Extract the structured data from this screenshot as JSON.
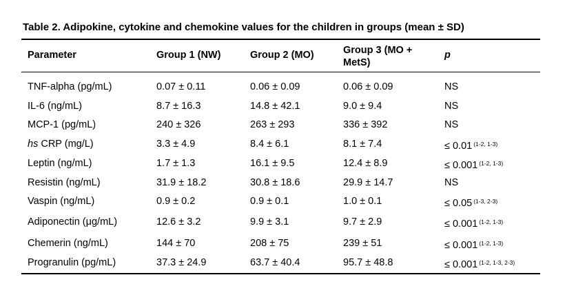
{
  "table": {
    "title": "Table 2. Adipokine, cytokine and chemokine values for the children in groups (mean ± SD)",
    "headers": [
      "Parameter",
      "Group 1 (NW)",
      "Group 2 (MO)",
      "Group 3 (MO +",
      "MetS)",
      "p"
    ],
    "rows": [
      {
        "param_prefix": "",
        "param": "TNF-alpha (pg/mL)",
        "g1": "0.07 ± 0.11",
        "g2": "0.06 ± 0.09",
        "g3": "0.06 ± 0.09",
        "p": "NS",
        "p_sup": ""
      },
      {
        "param_prefix": "",
        "param": "IL-6 (ng/mL)",
        "g1": "8.7 ± 16.3",
        "g2": "14.8 ± 42.1",
        "g3": "9.0 ± 9.4",
        "p": "NS",
        "p_sup": ""
      },
      {
        "param_prefix": "",
        "param": "MCP-1 (pg/mL)",
        "g1": "240 ± 326",
        "g2": "263 ± 293",
        "g3": "336 ± 392",
        "p": "NS",
        "p_sup": ""
      },
      {
        "param_prefix": "hs",
        "param": " CRP (mg/L)",
        "g1": "3.3 ± 4.9",
        "g2": "8.4 ± 6.1",
        "g3": "8.1 ± 7.4",
        "p": "≤ 0.01",
        "p_sup": "(1-2, 1-3)"
      },
      {
        "param_prefix": "",
        "param": "Leptin (ng/mL)",
        "g1": "1.7 ± 1.3",
        "g2": "16.1 ± 9.5",
        "g3": "12.4 ± 8.9",
        "p": "≤ 0.001",
        "p_sup": "(1-2, 1-3)"
      },
      {
        "param_prefix": "",
        "param": "Resistin (ng/mL)",
        "g1": "31.9 ± 18.2",
        "g2": "30.8 ± 18.6",
        "g3": "29.9 ± 14.7",
        "p": "NS",
        "p_sup": ""
      },
      {
        "param_prefix": "",
        "param": "Vaspin (ng/mL)",
        "g1": "0.9 ± 0.2",
        "g2": "0.9 ± 0.1",
        "g3": "1.0 ± 0.1",
        "p": "≤ 0.05",
        "p_sup": "(1-3, 2-3)"
      },
      {
        "param_prefix": "",
        "param": "Adiponectin (μg/mL)",
        "g1": "12.6 ± 3.2",
        "g2": "9.9 ± 3.1",
        "g3": "9.7 ± 2.9",
        "p": "≤ 0.001",
        "p_sup": "(1-2, 1-3)"
      },
      {
        "param_prefix": "",
        "param": "Chemerin (ng/mL)",
        "g1": "144 ± 70",
        "g2": "208 ± 75",
        "g3": "239 ± 51",
        "p": "≤ 0.001",
        "p_sup": "(1-2, 1-3)"
      },
      {
        "param_prefix": "",
        "param": "Progranulin (pg/mL)",
        "g1": "37.3 ± 24.9",
        "g2": "63.7 ± 40.4",
        "g3": "95.7 ± 48.8",
        "p": "≤ 0.001",
        "p_sup": "(1-2, 1-3, 2-3)"
      }
    ]
  }
}
